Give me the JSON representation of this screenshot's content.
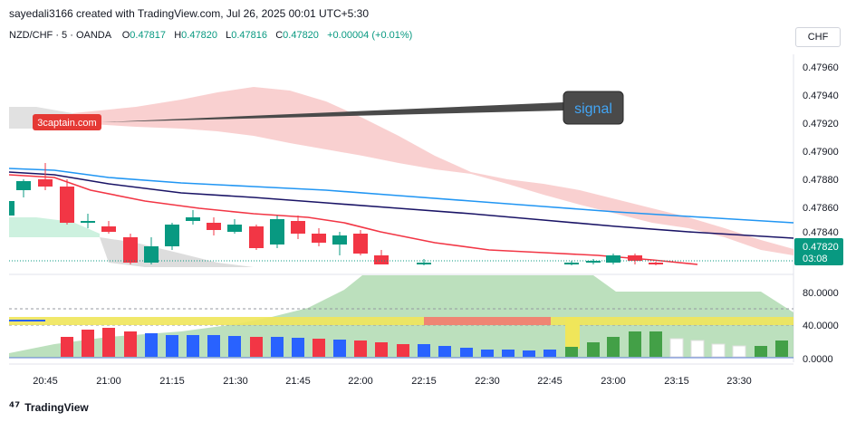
{
  "header": {
    "text": "sayedali3166 created with TradingView.com, Jul 26, 2025 00:01 UTC+5:30"
  },
  "legend": {
    "symbol": "NZD/CHF · 5 · OANDA",
    "o_label": "O",
    "o": "0.47817",
    "h_label": "H",
    "h": "0.47820",
    "l_label": "L",
    "l": "0.47816",
    "c_label": "C",
    "c": "0.47820",
    "change": "+0.00004 (+0.01%)"
  },
  "currency_button": "CHF",
  "price_axis": [
    "0.47960",
    "0.47940",
    "0.47920",
    "0.47900",
    "0.47880",
    "0.47860",
    "0.47840"
  ],
  "last_price": {
    "value": "0.47820",
    "countdown": "03:08"
  },
  "oscillator_axis": [
    "80.0000",
    "40.0000",
    "0.0000"
  ],
  "time_axis": [
    "20:45",
    "21:00",
    "21:15",
    "21:30",
    "21:45",
    "22:00",
    "22:15",
    "22:30",
    "22:45",
    "23:00",
    "23:15",
    "23:30"
  ],
  "annotations": {
    "signal": "signal",
    "badge": "3captain.com"
  },
  "footer": {
    "brand": "TradingView"
  },
  "colors": {
    "up": "#089981",
    "down": "#f23645",
    "ma_blue": "#2196f3",
    "ma_navy": "#1a1466",
    "ma_red": "#f23645",
    "cloud": "#f8c8c8",
    "osc_green": "#a5d6a7",
    "yellow_band": "#f0e65a"
  }
}
